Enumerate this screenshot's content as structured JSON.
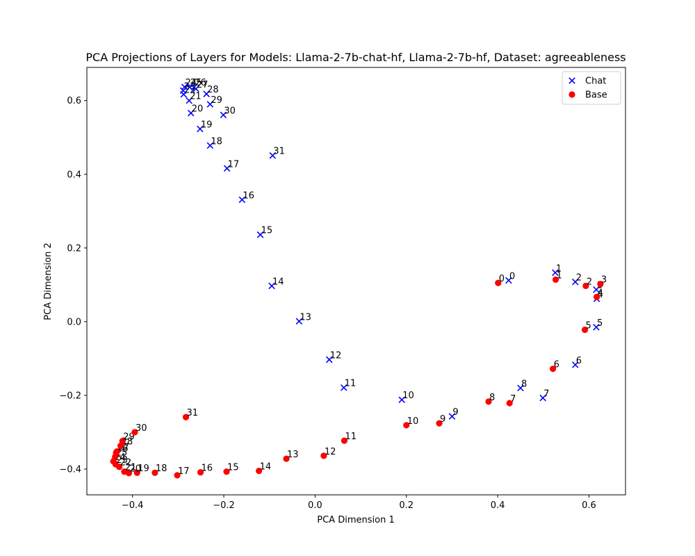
{
  "chart_data": {
    "type": "scatter",
    "title": "PCA Projections of Layers for Models: Llama-2-7b-chat-hf, Llama-2-7b-hf, Dataset: agreeableness",
    "xlabel": "PCA Dimension 1",
    "ylabel": "PCA Dimension 2",
    "xlim": [
      -0.5,
      0.68
    ],
    "ylim": [
      -0.47,
      0.69
    ],
    "xticks": [
      -0.4,
      -0.2,
      0.0,
      0.2,
      0.4,
      0.6
    ],
    "xtick_labels": [
      "−0.4",
      "−0.2",
      "0.0",
      "0.2",
      "0.4",
      "0.6"
    ],
    "yticks": [
      -0.4,
      -0.2,
      0.0,
      0.2,
      0.4,
      0.6
    ],
    "ytick_labels": [
      "−0.4",
      "−0.2",
      "0.0",
      "0.2",
      "0.4",
      "0.6"
    ],
    "grid": false,
    "legend_position": "top-right",
    "series": [
      {
        "name": "Chat",
        "marker": "x",
        "color": "#0000ff",
        "points": [
          {
            "label": "0",
            "x": 0.424,
            "y": 0.112
          },
          {
            "label": "1",
            "x": 0.526,
            "y": 0.133
          },
          {
            "label": "2",
            "x": 0.57,
            "y": 0.108
          },
          {
            "label": "3",
            "x": 0.616,
            "y": 0.087
          },
          {
            "label": "4",
            "x": 0.617,
            "y": 0.062
          },
          {
            "label": "5",
            "x": 0.616,
            "y": -0.015
          },
          {
            "label": "6",
            "x": 0.57,
            "y": -0.117
          },
          {
            "label": "7",
            "x": 0.499,
            "y": -0.207
          },
          {
            "label": "8",
            "x": 0.45,
            "y": -0.18
          },
          {
            "label": "9",
            "x": 0.3,
            "y": -0.257
          },
          {
            "label": "10",
            "x": 0.19,
            "y": -0.212
          },
          {
            "label": "11",
            "x": 0.063,
            "y": -0.179
          },
          {
            "label": "12",
            "x": 0.031,
            "y": -0.103
          },
          {
            "label": "13",
            "x": -0.035,
            "y": 0.001
          },
          {
            "label": "14",
            "x": -0.095,
            "y": 0.097
          },
          {
            "label": "15",
            "x": -0.12,
            "y": 0.236
          },
          {
            "label": "16",
            "x": -0.16,
            "y": 0.331
          },
          {
            "label": "17",
            "x": -0.193,
            "y": 0.416
          },
          {
            "label": "18",
            "x": -0.23,
            "y": 0.478
          },
          {
            "label": "19",
            "x": -0.252,
            "y": 0.523
          },
          {
            "label": "20",
            "x": -0.272,
            "y": 0.566
          },
          {
            "label": "21",
            "x": -0.276,
            "y": 0.6
          },
          {
            "label": "22",
            "x": -0.288,
            "y": 0.617
          },
          {
            "label": "23",
            "x": -0.289,
            "y": 0.627
          },
          {
            "label": "24",
            "x": -0.286,
            "y": 0.637
          },
          {
            "label": "25",
            "x": -0.275,
            "y": 0.637
          },
          {
            "label": "26",
            "x": -0.265,
            "y": 0.637
          },
          {
            "label": "27",
            "x": -0.261,
            "y": 0.632
          },
          {
            "label": "28",
            "x": -0.238,
            "y": 0.618
          },
          {
            "label": "29",
            "x": -0.23,
            "y": 0.59
          },
          {
            "label": "30",
            "x": -0.201,
            "y": 0.561
          },
          {
            "label": "31",
            "x": -0.093,
            "y": 0.451
          }
        ]
      },
      {
        "name": "Base",
        "marker": "o",
        "color": "#ff0000",
        "points": [
          {
            "label": "0",
            "x": 0.401,
            "y": 0.105
          },
          {
            "label": "1",
            "x": 0.527,
            "y": 0.114
          },
          {
            "label": "2",
            "x": 0.593,
            "y": 0.097
          },
          {
            "label": "3",
            "x": 0.625,
            "y": 0.102
          },
          {
            "label": "4",
            "x": 0.617,
            "y": 0.067
          },
          {
            "label": "5",
            "x": 0.591,
            "y": -0.022
          },
          {
            "label": "6",
            "x": 0.521,
            "y": -0.128
          },
          {
            "label": "7",
            "x": 0.426,
            "y": -0.221
          },
          {
            "label": "8",
            "x": 0.38,
            "y": -0.217
          },
          {
            "label": "9",
            "x": 0.272,
            "y": -0.276
          },
          {
            "label": "10",
            "x": 0.2,
            "y": -0.281
          },
          {
            "label": "11",
            "x": 0.064,
            "y": -0.323
          },
          {
            "label": "12",
            "x": 0.019,
            "y": -0.364
          },
          {
            "label": "13",
            "x": -0.063,
            "y": -0.372
          },
          {
            "label": "14",
            "x": -0.123,
            "y": -0.405
          },
          {
            "label": "15",
            "x": -0.194,
            "y": -0.407
          },
          {
            "label": "16",
            "x": -0.251,
            "y": -0.409
          },
          {
            "label": "17",
            "x": -0.302,
            "y": -0.417
          },
          {
            "label": "18",
            "x": -0.351,
            "y": -0.41
          },
          {
            "label": "19",
            "x": -0.39,
            "y": -0.41
          },
          {
            "label": "20",
            "x": -0.408,
            "y": -0.411
          },
          {
            "label": "21",
            "x": -0.418,
            "y": -0.407
          },
          {
            "label": "22",
            "x": -0.429,
            "y": -0.394
          },
          {
            "label": "23",
            "x": -0.437,
            "y": -0.387
          },
          {
            "label": "24",
            "x": -0.442,
            "y": -0.379
          },
          {
            "label": "25",
            "x": -0.438,
            "y": -0.367
          },
          {
            "label": "26",
            "x": -0.436,
            "y": -0.356
          },
          {
            "label": "27",
            "x": -0.434,
            "y": -0.352
          },
          {
            "label": "28",
            "x": -0.426,
            "y": -0.337
          },
          {
            "label": "29",
            "x": -0.422,
            "y": -0.324
          },
          {
            "label": "30",
            "x": -0.395,
            "y": -0.3
          },
          {
            "label": "31",
            "x": -0.283,
            "y": -0.259
          }
        ]
      }
    ]
  }
}
